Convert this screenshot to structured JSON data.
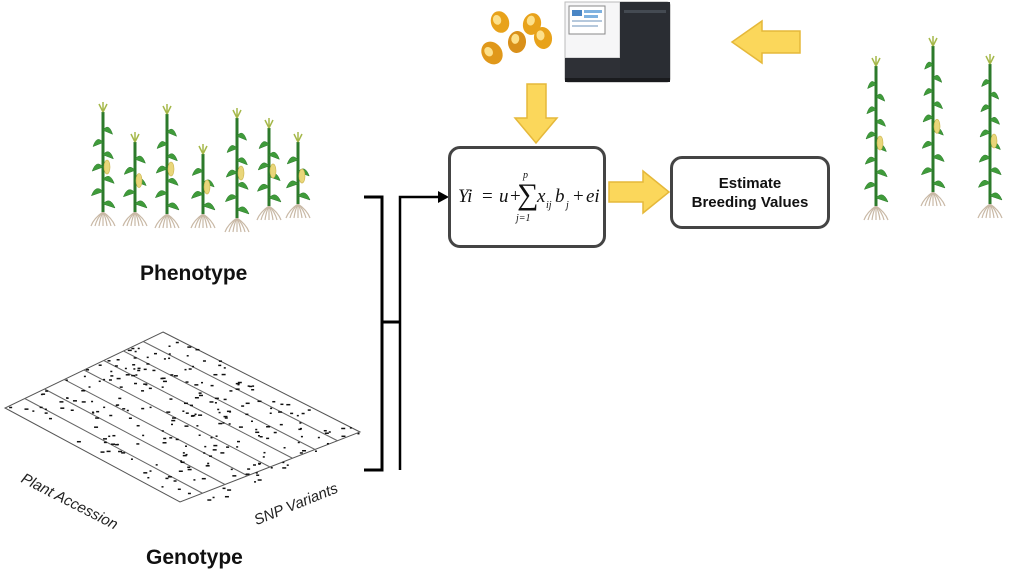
{
  "labels": {
    "phenotype": "Phenotype",
    "genotype": "Genotype",
    "plant_accession": "Plant Accession",
    "snp_variants": "SNP Variants"
  },
  "formula": {
    "lhs": "Yi",
    "u": "u",
    "sum_upper": "p",
    "sum_lower": "j=1",
    "x": "x",
    "x_sub": "ij",
    "b": "b",
    "b_sub": "j",
    "e": "ei"
  },
  "estimate": {
    "line1": "Estimate",
    "line2": "Breeding Values"
  },
  "colors": {
    "arrow_fill": "#fbd75b",
    "arrow_stroke": "#e5b83a",
    "box_border": "#444444",
    "plant_green": "#3f9b3a",
    "plant_dark": "#2c7a2b",
    "root": "#c9b9a6"
  }
}
